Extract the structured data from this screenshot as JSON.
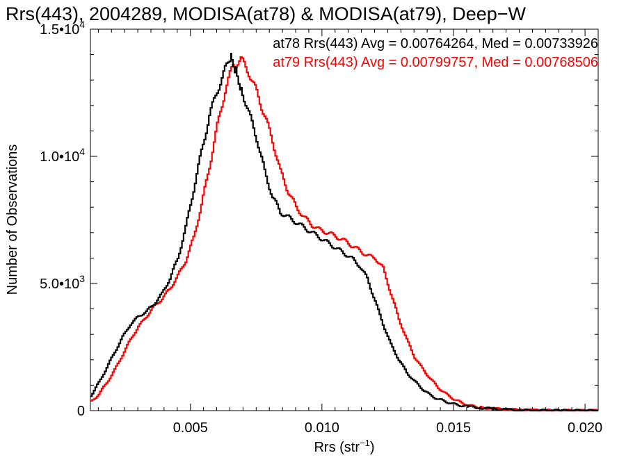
{
  "chart_data": {
    "type": "line",
    "title": "Rrs(443), 2004289, MODISA(at78) & MODISA(at79), Deep−W",
    "xlabel_main": "Rrs (str",
    "xlabel_sup": "−1",
    "xlabel_close": ")",
    "ylabel": "Number of Observations",
    "xlim": [
      0.0012,
      0.0205
    ],
    "ylim": [
      0,
      15000
    ],
    "x_ticks": [
      {
        "value": 0.005,
        "label": "0.005"
      },
      {
        "value": 0.01,
        "label": "0.010"
      },
      {
        "value": 0.015,
        "label": "0.015"
      },
      {
        "value": 0.02,
        "label": "0.020"
      }
    ],
    "y_ticks": [
      {
        "value": 0,
        "mant": "0",
        "exp": ""
      },
      {
        "value": 5000,
        "mant": "5.0•10",
        "exp": "3"
      },
      {
        "value": 10000,
        "mant": "1.0•10",
        "exp": "4"
      },
      {
        "value": 15000,
        "mant": "1.5•10",
        "exp": "4"
      }
    ],
    "annotations": [
      {
        "text": "at78 Rrs(443) Avg = 0.00764264, Med = 0.00733926",
        "color": "#000000"
      },
      {
        "text": "at79 Rrs(443) Avg = 0.00799757, Med = 0.00768506",
        "color": "#ff0000"
      }
    ],
    "series": [
      {
        "name": "at78",
        "color": "#000000",
        "x": [
          0.0012,
          0.0015,
          0.0018,
          0.0021,
          0.0024,
          0.0027,
          0.003,
          0.0033,
          0.0036,
          0.0039,
          0.0042,
          0.0045,
          0.0048,
          0.0051,
          0.0054,
          0.0057,
          0.006,
          0.0063,
          0.0065,
          0.0067,
          0.0069,
          0.0072,
          0.0075,
          0.0078,
          0.0081,
          0.0084,
          0.0087,
          0.009,
          0.0093,
          0.0096,
          0.0099,
          0.0102,
          0.0105,
          0.0108,
          0.0111,
          0.0114,
          0.0117,
          0.012,
          0.0123,
          0.0126,
          0.0129,
          0.0132,
          0.0135,
          0.0138,
          0.0141,
          0.0144,
          0.0147,
          0.015,
          0.0155,
          0.016,
          0.0165,
          0.017,
          0.0175,
          0.018,
          0.019,
          0.0205
        ],
        "y": [
          600,
          1100,
          1700,
          2300,
          2900,
          3400,
          3700,
          3900,
          4200,
          4600,
          5200,
          6000,
          7200,
          8700,
          10200,
          11600,
          12600,
          13400,
          13900,
          13400,
          12700,
          11700,
          10700,
          9400,
          8400,
          7800,
          7600,
          7400,
          7200,
          7000,
          6800,
          6600,
          6400,
          6200,
          6000,
          5700,
          5200,
          4300,
          3400,
          2600,
          2000,
          1500,
          1150,
          850,
          600,
          450,
          350,
          250,
          160,
          110,
          70,
          40,
          20,
          10,
          5,
          0
        ]
      },
      {
        "name": "at79",
        "color": "#ff0000",
        "x": [
          0.0012,
          0.0015,
          0.0018,
          0.0021,
          0.0024,
          0.0027,
          0.003,
          0.0033,
          0.0036,
          0.0039,
          0.0042,
          0.0045,
          0.0048,
          0.0051,
          0.0054,
          0.0057,
          0.006,
          0.0063,
          0.0066,
          0.0069,
          0.0072,
          0.0075,
          0.0078,
          0.0081,
          0.0084,
          0.0087,
          0.009,
          0.0093,
          0.0096,
          0.0099,
          0.0102,
          0.0105,
          0.0108,
          0.0111,
          0.0114,
          0.0117,
          0.012,
          0.0123,
          0.0126,
          0.0129,
          0.0132,
          0.0135,
          0.0138,
          0.0141,
          0.0144,
          0.0147,
          0.015,
          0.0153,
          0.0156,
          0.016,
          0.0165,
          0.017,
          0.0175,
          0.018,
          0.019,
          0.0205
        ],
        "y": [
          350,
          650,
          1100,
          1600,
          2200,
          2800,
          3300,
          3700,
          4100,
          4400,
          4800,
          5300,
          5900,
          6800,
          8100,
          9600,
          11200,
          12600,
          13600,
          13800,
          13300,
          12500,
          11600,
          10600,
          9400,
          8600,
          8000,
          7600,
          7300,
          7100,
          7000,
          6850,
          6700,
          6500,
          6300,
          6100,
          6000,
          5600,
          4600,
          3600,
          2800,
          2100,
          1650,
          1250,
          900,
          650,
          450,
          300,
          200,
          120,
          80,
          50,
          30,
          15,
          5,
          0
        ]
      }
    ]
  }
}
